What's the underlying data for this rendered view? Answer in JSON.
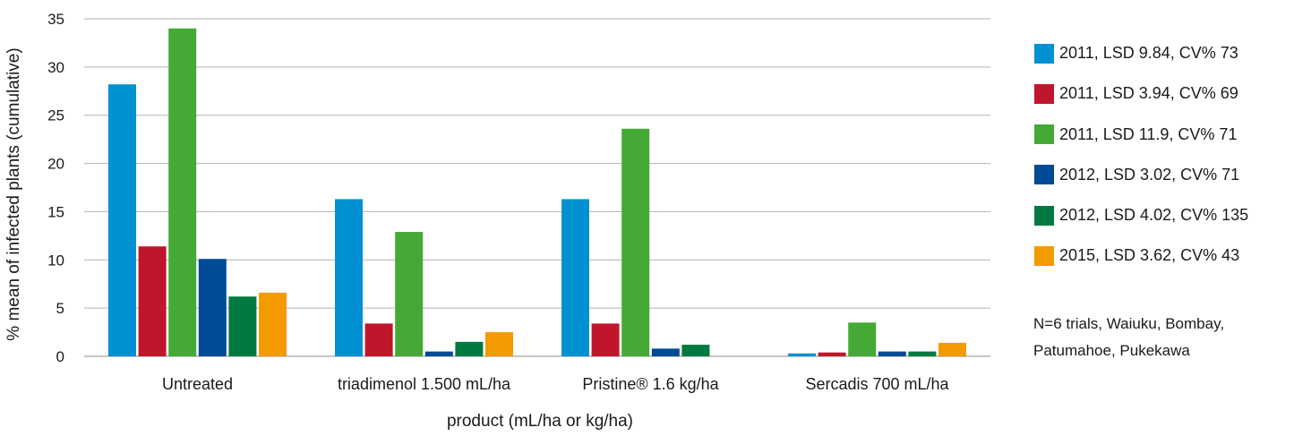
{
  "chart_data": {
    "type": "bar",
    "title": "",
    "xlabel": "product (mL/ha or kg/ha)",
    "ylabel": "% mean of infected plants (cumulative)",
    "ylim": [
      0,
      35
    ],
    "yticks": [
      "0",
      "5",
      "10",
      "15",
      "20",
      "25",
      "30",
      "35"
    ],
    "grid": true,
    "legend_position": "right",
    "categories": [
      "Untreated",
      "triadimenol 1.500 mL/ha",
      "Pristine® 1.6 kg/ha",
      "Sercadis 700 mL/ha"
    ],
    "series": [
      {
        "name": "2011, LSD 9.84, CV% 73",
        "color": "#0091d2",
        "values": [
          28.2,
          16.3,
          16.3,
          0.3
        ]
      },
      {
        "name": "2011, LSD 3.94, CV% 69",
        "color": "#c0162b",
        "values": [
          11.4,
          3.4,
          3.4,
          0.4
        ]
      },
      {
        "name": "2011, LSD 11.9, CV% 71",
        "color": "#44aa35",
        "values": [
          34.0,
          12.9,
          23.6,
          3.5
        ]
      },
      {
        "name": "2012, LSD 3.02, CV% 71",
        "color": "#004b95",
        "values": [
          10.1,
          0.5,
          0.8,
          0.5
        ]
      },
      {
        "name": "2012, LSD 4.02, CV% 135",
        "color": "#007a40",
        "values": [
          6.2,
          1.5,
          1.2,
          0.5
        ]
      },
      {
        "name": "2015, LSD 3.62, CV% 43",
        "color": "#f39a00",
        "values": [
          6.6,
          2.5,
          0.0,
          1.4
        ]
      }
    ]
  },
  "note": {
    "line1": "N=6 trials, Waiuku, Bombay,",
    "line2": "Patumahoe, Pukekawa"
  }
}
